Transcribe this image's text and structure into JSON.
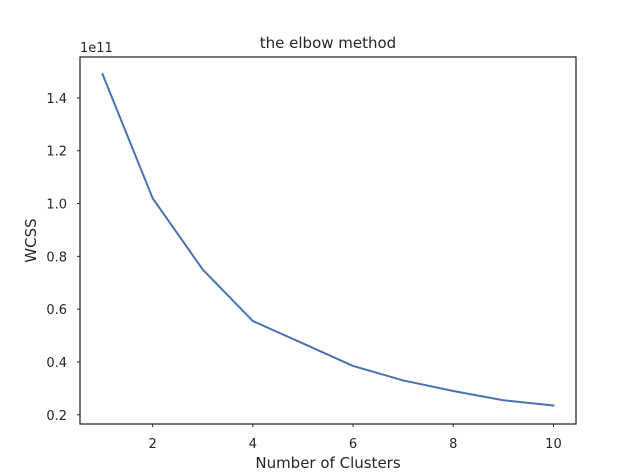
{
  "chart_data": {
    "type": "line",
    "title": "the elbow method",
    "xlabel": "Number of Clusters",
    "ylabel": "WCSS",
    "y_offset_text": "1e11",
    "x": [
      1,
      2,
      3,
      4,
      5,
      6,
      7,
      8,
      9,
      10
    ],
    "series": [
      {
        "values": [
          149000000000.0,
          102000000000.0,
          75000000000.0,
          55500000000.0,
          47000000000.0,
          38500000000.0,
          33000000000.0,
          29000000000.0,
          25500000000.0,
          23500000000.0
        ]
      }
    ],
    "xlim": [
      0.55,
      10.45
    ],
    "ylim": [
      16500000000.0,
      155500000000.0
    ],
    "x_ticks": [
      2,
      4,
      6,
      8,
      10
    ],
    "x_tick_labels": [
      "2",
      "4",
      "6",
      "8",
      "10"
    ],
    "y_ticks": [
      20000000000.0,
      40000000000.0,
      60000000000.0,
      80000000000.0,
      100000000000.0,
      120000000000.0,
      140000000000.0
    ],
    "y_tick_labels": [
      "0.2",
      "0.4",
      "0.6",
      "0.8",
      "1.0",
      "1.2",
      "1.4"
    ],
    "grid": false,
    "colors": {
      "line": "#4c72b0",
      "axes": "#262626",
      "text": "#262626",
      "background": "#ffffff"
    }
  }
}
